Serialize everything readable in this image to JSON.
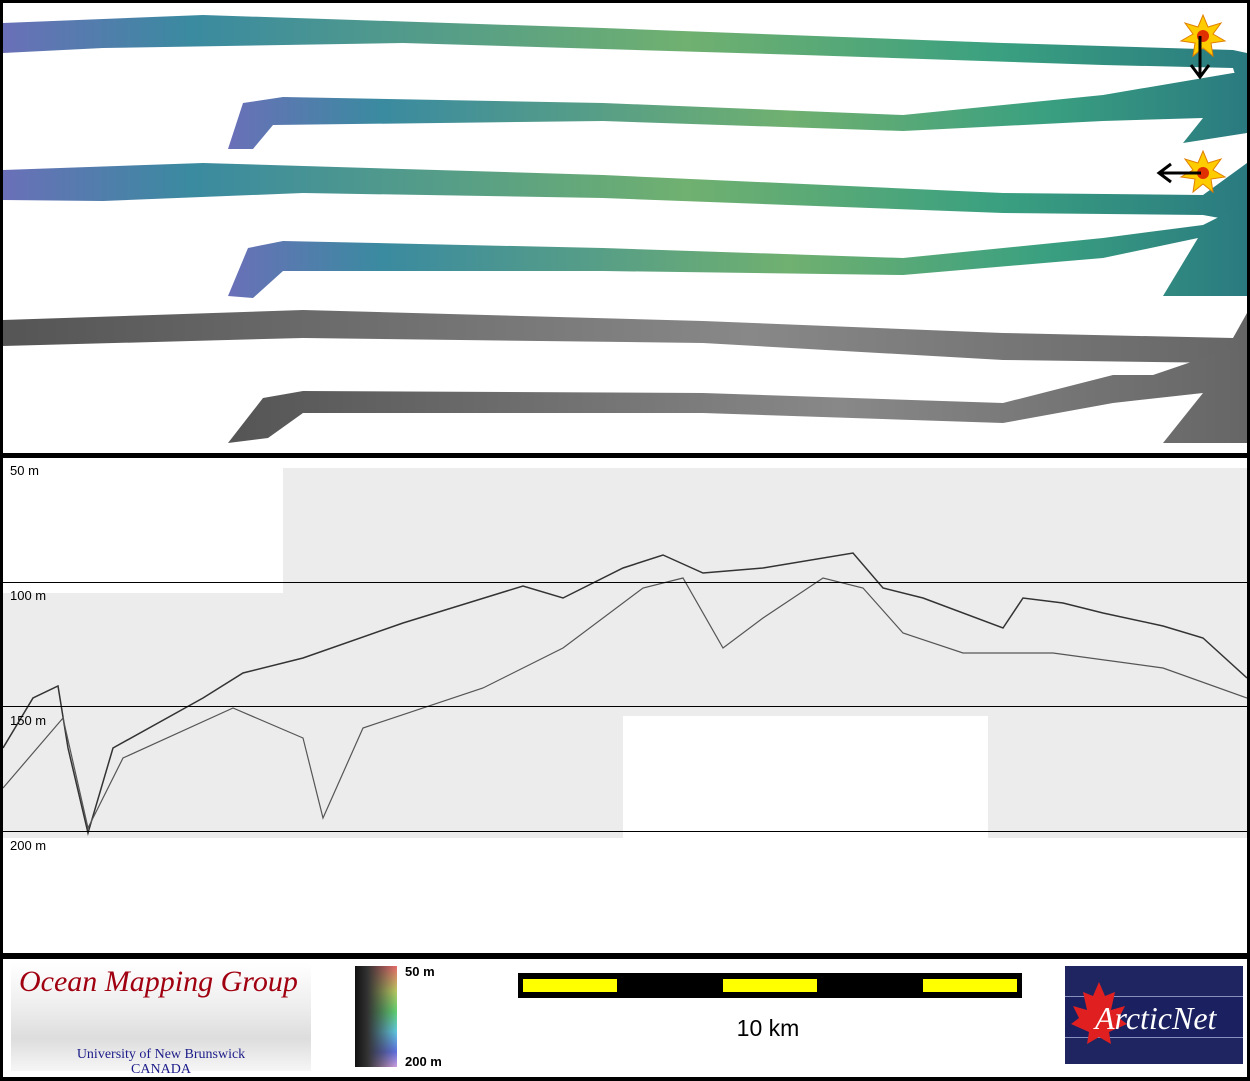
{
  "profile": {
    "depth_labels": [
      "50 m",
      "100 m",
      "150 m",
      "200 m"
    ]
  },
  "legend": {
    "ocean_mapping_group": {
      "title": "Ocean Mapping Group",
      "line1": "University of New Brunswick",
      "line2": "CANADA"
    },
    "colorbar": {
      "top_label": "50 m",
      "bottom_label": "200 m"
    },
    "scale_bar": {
      "label": "10 km",
      "colors": [
        "#ffff00",
        "#000000"
      ]
    },
    "arcticnet": {
      "text": "ArcticNet"
    }
  },
  "colors": {
    "swath_shallow": "#a0b840",
    "swath_mid": "#40a080",
    "swath_deep": "#6070c0",
    "backscatter": "#707070"
  }
}
